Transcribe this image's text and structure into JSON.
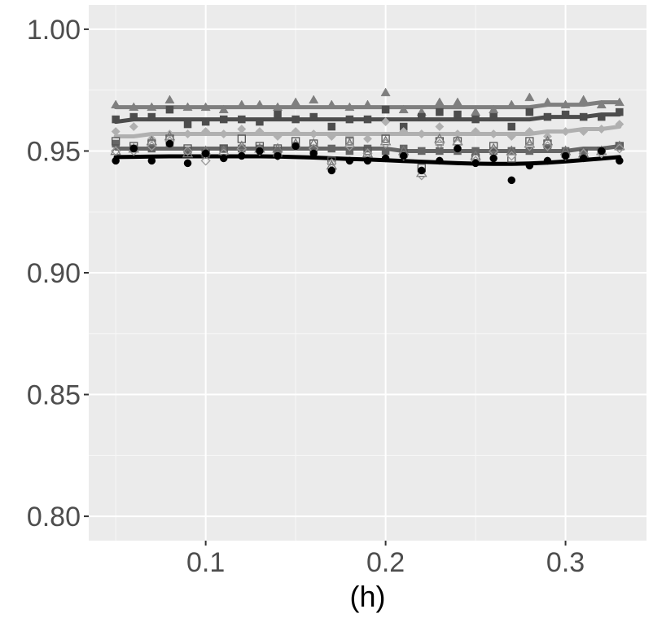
{
  "chart_data": {
    "type": "scatter",
    "title": "",
    "xlabel": "(h)",
    "ylabel": "",
    "xlim": [
      0.035,
      0.345
    ],
    "ylim": [
      0.79,
      1.01
    ],
    "x_ticks": [
      0.1,
      0.2,
      0.3
    ],
    "x_tick_labels": [
      "0.1",
      "0.2",
      "0.3"
    ],
    "y_ticks": [
      0.8,
      0.85,
      0.9,
      0.95,
      1.0
    ],
    "y_tick_labels": [
      "0.80",
      "0.85",
      "0.90",
      "0.95",
      "1.00"
    ],
    "grid": true,
    "legend": "none",
    "x": [
      0.05,
      0.06,
      0.07,
      0.08,
      0.09,
      0.1,
      0.11,
      0.12,
      0.13,
      0.14,
      0.15,
      0.16,
      0.17,
      0.18,
      0.19,
      0.2,
      0.21,
      0.22,
      0.23,
      0.24,
      0.25,
      0.26,
      0.27,
      0.28,
      0.29,
      0.3,
      0.31,
      0.32,
      0.33
    ],
    "series": [
      {
        "color": "#7f7f7f",
        "marker": "triangle-filled",
        "points": [
          0.969,
          0.968,
          0.968,
          0.971,
          0.968,
          0.968,
          0.967,
          0.969,
          0.969,
          0.968,
          0.97,
          0.971,
          0.969,
          0.968,
          0.969,
          0.974,
          0.967,
          0.966,
          0.97,
          0.97,
          0.966,
          0.967,
          0.969,
          0.972,
          0.97,
          0.969,
          0.971,
          0.969,
          0.97
        ],
        "trend": [
          0.968,
          0.968,
          0.968,
          0.968,
          0.968,
          0.968,
          0.968,
          0.968,
          0.968,
          0.968,
          0.968,
          0.968,
          0.968,
          0.968,
          0.968,
          0.968,
          0.968,
          0.968,
          0.968,
          0.968,
          0.968,
          0.968,
          0.968,
          0.968,
          0.969,
          0.969,
          0.969,
          0.97,
          0.97
        ]
      },
      {
        "color": "#4d4d4d",
        "marker": "square-filled",
        "points": [
          0.963,
          0.964,
          0.964,
          0.967,
          0.961,
          0.962,
          0.963,
          0.963,
          0.962,
          0.965,
          0.963,
          0.964,
          0.96,
          0.963,
          0.963,
          0.967,
          0.96,
          0.964,
          0.966,
          0.965,
          0.963,
          0.964,
          0.96,
          0.966,
          0.964,
          0.965,
          0.964,
          0.964,
          0.966
        ],
        "trend": [
          0.962,
          0.963,
          0.963,
          0.963,
          0.963,
          0.963,
          0.963,
          0.963,
          0.963,
          0.963,
          0.963,
          0.963,
          0.963,
          0.963,
          0.963,
          0.963,
          0.963,
          0.963,
          0.963,
          0.963,
          0.963,
          0.963,
          0.963,
          0.963,
          0.964,
          0.964,
          0.964,
          0.965,
          0.965
        ]
      },
      {
        "color": "#b0b0b0",
        "marker": "diamond-filled",
        "points": [
          0.958,
          0.96,
          0.955,
          0.957,
          0.957,
          0.958,
          0.957,
          0.959,
          0.958,
          0.956,
          0.958,
          0.957,
          0.956,
          0.956,
          0.955,
          0.962,
          0.958,
          0.957,
          0.96,
          0.957,
          0.958,
          0.957,
          0.956,
          0.958,
          0.956,
          0.958,
          0.958,
          0.959,
          0.961
        ],
        "trend": [
          0.956,
          0.956,
          0.957,
          0.957,
          0.957,
          0.957,
          0.957,
          0.957,
          0.957,
          0.957,
          0.957,
          0.957,
          0.957,
          0.957,
          0.957,
          0.957,
          0.957,
          0.957,
          0.957,
          0.957,
          0.957,
          0.957,
          0.957,
          0.957,
          0.958,
          0.958,
          0.959,
          0.959,
          0.96
        ]
      },
      {
        "color": "#666666",
        "marker": "square-filled",
        "points": [
          0.953,
          0.951,
          0.951,
          0.952,
          0.95,
          0.95,
          0.951,
          0.951,
          0.951,
          0.95,
          0.952,
          0.951,
          0.951,
          0.95,
          0.951,
          0.95,
          0.951,
          0.95,
          0.95,
          0.95,
          0.95,
          0.95,
          0.95,
          0.95,
          0.951,
          0.95,
          0.95,
          0.95,
          0.952
        ],
        "trend": [
          0.951,
          0.951,
          0.951,
          0.951,
          0.951,
          0.951,
          0.951,
          0.951,
          0.951,
          0.951,
          0.951,
          0.951,
          0.951,
          0.951,
          0.951,
          0.951,
          0.95,
          0.95,
          0.95,
          0.95,
          0.95,
          0.95,
          0.95,
          0.95,
          0.95,
          0.95,
          0.951,
          0.951,
          0.952
        ]
      },
      {
        "color": "#555555",
        "marker": "square-open",
        "points": [
          0.954,
          0.952,
          0.953,
          0.955,
          0.951,
          0.949,
          0.951,
          0.955,
          0.952,
          0.951,
          0.954,
          0.953,
          0.946,
          0.954,
          0.95,
          0.955,
          0.949,
          0.943,
          0.954,
          0.954,
          0.947,
          0.952,
          0.947,
          0.954,
          0.953,
          0.949,
          0.949,
          0.95,
          0.952
        ],
        "trend": []
      },
      {
        "color": "#777777",
        "marker": "triangle-open",
        "points": [
          0.95,
          0.951,
          0.954,
          0.956,
          0.949,
          0.95,
          0.95,
          0.952,
          0.951,
          0.951,
          0.953,
          0.953,
          0.944,
          0.953,
          0.949,
          0.954,
          0.95,
          0.941,
          0.955,
          0.954,
          0.948,
          0.951,
          0.95,
          0.953,
          0.954,
          0.95,
          0.949,
          0.95,
          0.952
        ],
        "trend": []
      },
      {
        "color": "#999999",
        "marker": "diamond-open",
        "points": [
          0.95,
          0.95,
          0.952,
          0.954,
          0.95,
          0.946,
          0.949,
          0.951,
          0.95,
          0.948,
          0.952,
          0.951,
          0.945,
          0.952,
          0.949,
          0.953,
          0.948,
          0.94,
          0.953,
          0.953,
          0.946,
          0.95,
          0.948,
          0.952,
          0.952,
          0.948,
          0.949,
          0.949,
          0.951
        ],
        "trend": []
      },
      {
        "color": "#000000",
        "marker": "circle-filled",
        "points": [
          0.946,
          0.951,
          0.946,
          0.953,
          0.945,
          0.949,
          0.947,
          0.948,
          0.95,
          0.948,
          0.952,
          0.949,
          0.942,
          0.946,
          0.946,
          0.947,
          0.948,
          0.942,
          0.946,
          0.951,
          0.945,
          0.947,
          0.938,
          0.944,
          0.946,
          0.948,
          0.947,
          0.95,
          0.946
        ],
        "trend": [
          0.9475,
          0.9476,
          0.9477,
          0.9478,
          0.9478,
          0.9478,
          0.9478,
          0.9478,
          0.9478,
          0.9477,
          0.9475,
          0.9473,
          0.947,
          0.9467,
          0.9465,
          0.9462,
          0.9459,
          0.9456,
          0.9453,
          0.945,
          0.9448,
          0.9447,
          0.9447,
          0.9449,
          0.9452,
          0.9457,
          0.9463,
          0.9469,
          0.9475
        ]
      }
    ]
  }
}
